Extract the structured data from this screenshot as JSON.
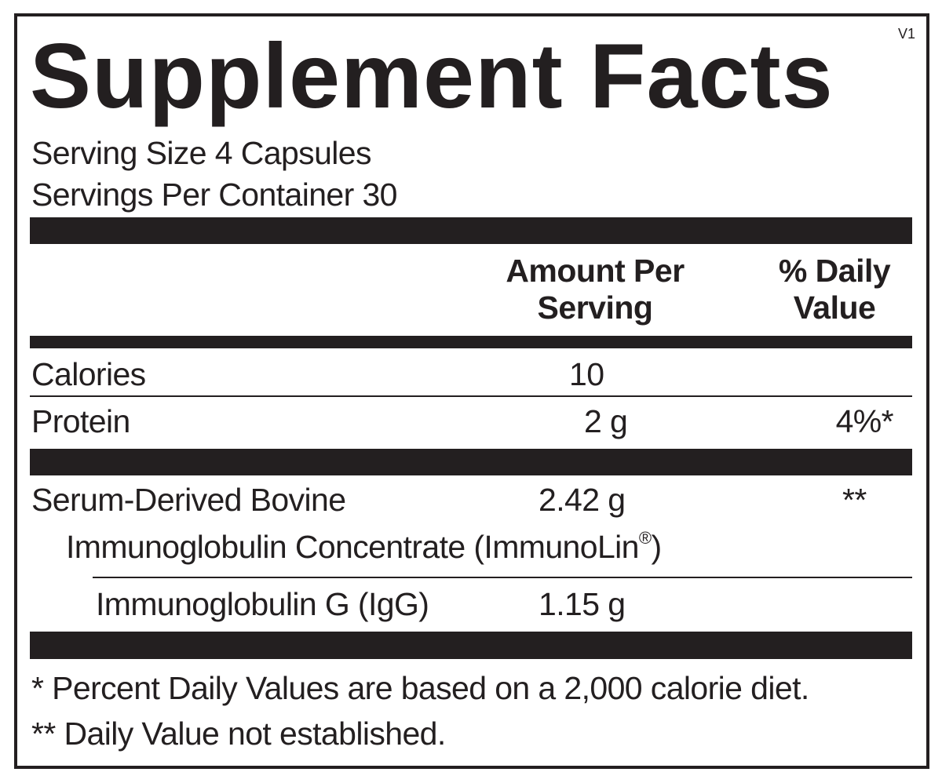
{
  "label": {
    "title": "Supplement Facts",
    "version": "V1",
    "serving_size": "Serving Size 4 Capsules",
    "servings_per_container": "Servings Per Container 30",
    "header": {
      "amount_line1": "Amount Per",
      "amount_line2": "Serving",
      "dv_line1": "% Daily",
      "dv_line2": "Value"
    },
    "rows": [
      {
        "name": "Calories",
        "amount": "10",
        "dv": ""
      },
      {
        "name": "Protein",
        "amount": "2 g",
        "dv": "4%*"
      },
      {
        "name": "Serum-Derived Bovine",
        "name_cont": "Immunoglobulin Concentrate (ImmunoLin",
        "reg": "®",
        "name_end": ")",
        "amount": "2.42 g",
        "dv": "**"
      },
      {
        "name": "Immunoglobulin G (IgG)",
        "amount": "1.15 g",
        "dv": ""
      }
    ],
    "footnotes": [
      "* Percent Daily Values are based on a 2,000 calorie diet.",
      "** Daily Value not established."
    ]
  },
  "colors": {
    "ink": "#231f20",
    "background": "#ffffff"
  }
}
